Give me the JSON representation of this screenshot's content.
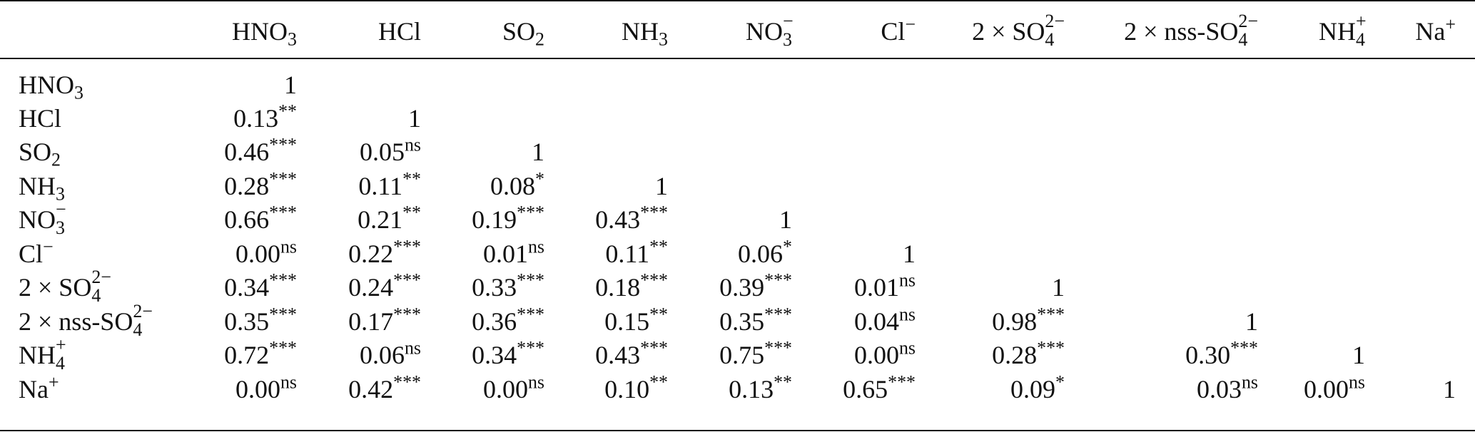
{
  "columns": [
    {
      "base": "HNO",
      "sub": "3",
      "sup": ""
    },
    {
      "base": "HCl",
      "sub": "",
      "sup": ""
    },
    {
      "base": "SO",
      "sub": "2",
      "sup": ""
    },
    {
      "base": "NH",
      "sub": "3",
      "sup": ""
    },
    {
      "base": "NO",
      "sub": "3",
      "sup": "−"
    },
    {
      "base": "Cl",
      "sub": "",
      "sup": "−"
    },
    {
      "base": "2 × SO",
      "sub": "4",
      "sup": "2−"
    },
    {
      "base": "2 × nss-SO",
      "sub": "4",
      "sup": "2−"
    },
    {
      "base": "NH",
      "sub": "4",
      "sup": "+"
    },
    {
      "base": "Na",
      "sub": "",
      "sup": "+"
    }
  ],
  "rows": [
    {
      "label": {
        "base": "HNO",
        "sub": "3",
        "sup": ""
      },
      "cells": [
        [
          "1",
          ""
        ]
      ]
    },
    {
      "label": {
        "base": "HCl",
        "sub": "",
        "sup": ""
      },
      "cells": [
        [
          "0.13",
          "**"
        ],
        [
          "1",
          ""
        ]
      ]
    },
    {
      "label": {
        "base": "SO",
        "sub": "2",
        "sup": ""
      },
      "cells": [
        [
          "0.46",
          "***"
        ],
        [
          "0.05",
          "ns"
        ],
        [
          "1",
          ""
        ]
      ]
    },
    {
      "label": {
        "base": "NH",
        "sub": "3",
        "sup": ""
      },
      "cells": [
        [
          "0.28",
          "***"
        ],
        [
          "0.11",
          "**"
        ],
        [
          "0.08",
          "*"
        ],
        [
          "1",
          ""
        ]
      ]
    },
    {
      "label": {
        "base": "NO",
        "sub": "3",
        "sup": "−"
      },
      "cells": [
        [
          "0.66",
          "***"
        ],
        [
          "0.21",
          "**"
        ],
        [
          "0.19",
          "***"
        ],
        [
          "0.43",
          "***"
        ],
        [
          "1",
          ""
        ]
      ]
    },
    {
      "label": {
        "base": "Cl",
        "sub": "",
        "sup": "−"
      },
      "cells": [
        [
          "0.00",
          "ns"
        ],
        [
          "0.22",
          "***"
        ],
        [
          "0.01",
          "ns"
        ],
        [
          "0.11",
          "**"
        ],
        [
          "0.06",
          "*"
        ],
        [
          "1",
          ""
        ]
      ]
    },
    {
      "label": {
        "base": "2 × SO",
        "sub": "4",
        "sup": "2−"
      },
      "cells": [
        [
          "0.34",
          "***"
        ],
        [
          "0.24",
          "***"
        ],
        [
          "0.33",
          "***"
        ],
        [
          "0.18",
          "***"
        ],
        [
          "0.39",
          "***"
        ],
        [
          "0.01",
          "ns"
        ],
        [
          "1",
          ""
        ]
      ]
    },
    {
      "label": {
        "base": "2 × nss-SO",
        "sub": "4",
        "sup": "2−"
      },
      "cells": [
        [
          "0.35",
          "***"
        ],
        [
          "0.17",
          "***"
        ],
        [
          "0.36",
          "***"
        ],
        [
          "0.15",
          "**"
        ],
        [
          "0.35",
          "***"
        ],
        [
          "0.04",
          "ns"
        ],
        [
          "0.98",
          "***"
        ],
        [
          "1",
          ""
        ]
      ]
    },
    {
      "label": {
        "base": "NH",
        "sub": "4",
        "sup": "+"
      },
      "cells": [
        [
          "0.72",
          "***"
        ],
        [
          "0.06",
          "ns"
        ],
        [
          "0.34",
          "***"
        ],
        [
          "0.43",
          "***"
        ],
        [
          "0.75",
          "***"
        ],
        [
          "0.00",
          "ns"
        ],
        [
          "0.28",
          "***"
        ],
        [
          "0.30",
          "***"
        ],
        [
          "1",
          ""
        ]
      ]
    },
    {
      "label": {
        "base": "Na",
        "sub": "",
        "sup": "+"
      },
      "cells": [
        [
          "0.00",
          "ns"
        ],
        [
          "0.42",
          "***"
        ],
        [
          "0.00",
          "ns"
        ],
        [
          "0.10",
          "**"
        ],
        [
          "0.13",
          "**"
        ],
        [
          "0.65",
          "***"
        ],
        [
          "0.09",
          "*"
        ],
        [
          "0.03",
          "ns"
        ],
        [
          "0.00",
          "ns"
        ],
        [
          "1",
          ""
        ]
      ]
    }
  ]
}
